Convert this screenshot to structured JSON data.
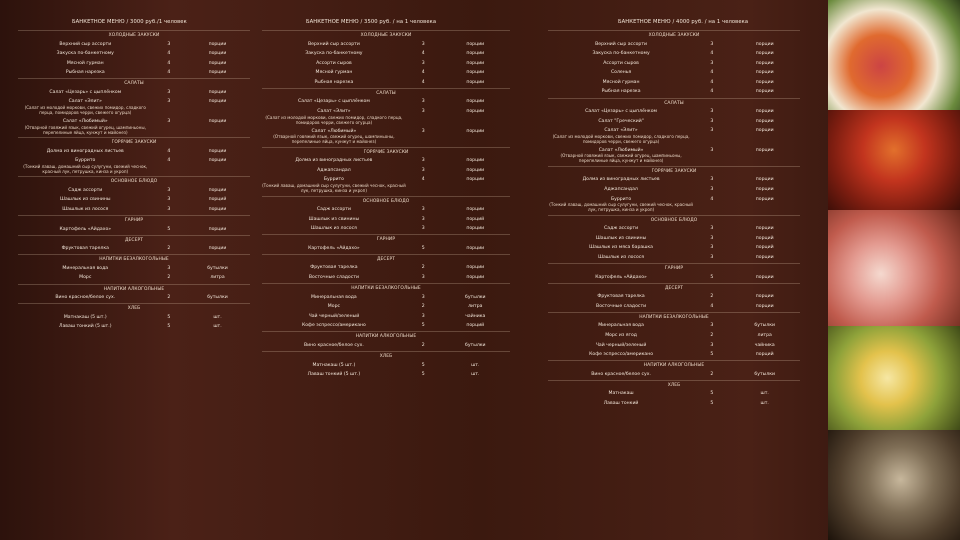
{
  "columns": [
    {
      "title": "БАНКЕТНОЕ МЕНЮ / 3000 руб./1 человек",
      "sections": [
        {
          "title": "ХОЛОДНЫЕ ЗАКУСКИ",
          "items": [
            {
              "name": "Верхний сыр ассорти",
              "qty": "3",
              "unit": "порции"
            },
            {
              "name": "Закуска по-банкетному",
              "qty": "4",
              "unit": "порции"
            },
            {
              "name": "Мясной гурман",
              "qty": "4",
              "unit": "порции"
            },
            {
              "name": "Рыбная нарезка",
              "qty": "4",
              "unit": "порции"
            }
          ]
        },
        {
          "title": "САЛАТЫ",
          "items": [
            {
              "name": "Салат «Цезарь» с цыплёнком",
              "qty": "3",
              "unit": "порции"
            },
            {
              "name": "Салат «Элит»",
              "desc": "(Салат из молодой моркови, свежих помидор, сладкого перца, помидоров черри, свежего огурца)",
              "qty": "3",
              "unit": "порции"
            },
            {
              "name": "Салат «Любимый»",
              "desc": "(Отварной говяжий язык, свежий огурец, шампиньоны, перепелиные яйца, кунжут и майонез)",
              "qty": "3",
              "unit": "порции"
            }
          ]
        },
        {
          "title": "ГОРЯЧИЕ ЗАКУСКИ",
          "items": [
            {
              "name": "Долма из виноградных листьев",
              "qty": "4",
              "unit": "порции"
            },
            {
              "name": "Буррито",
              "desc": "(Тонкий лаваш, домашний сыр сулугуни, свежий чеснок, красный лук, петрушка, кинза и укроп)",
              "qty": "4",
              "unit": "порции"
            }
          ]
        },
        {
          "title": "ОСНОВНОЕ БЛЮДО",
          "items": [
            {
              "name": "Садж ассорти",
              "qty": "3",
              "unit": "порции"
            },
            {
              "name": "Шашлык из свинины",
              "qty": "3",
              "unit": "порций"
            },
            {
              "name": "Шашлык из лосося",
              "qty": "3",
              "unit": "порции"
            }
          ]
        },
        {
          "title": "ГАРНИР",
          "items": [
            {
              "name": "Картофель «Айдахо»",
              "qty": "5",
              "unit": "порции"
            }
          ]
        },
        {
          "title": "ДЕСЕРТ",
          "items": [
            {
              "name": "Фруктовая тарелка",
              "qty": "2",
              "unit": "порции"
            }
          ]
        },
        {
          "title": "НАПИТКИ БЕЗАЛКОГОЛЬНЫЕ",
          "items": [
            {
              "name": "Минеральная вода",
              "qty": "3",
              "unit": "бутылки"
            },
            {
              "name": "Морс",
              "qty": "2",
              "unit": "литра"
            }
          ]
        },
        {
          "title": "НАПИТКИ АЛКОГОЛЬНЫЕ",
          "items": [
            {
              "name": "Вино красное/белое сух.",
              "qty": "2",
              "unit": "бутылки"
            }
          ]
        },
        {
          "title": "ХЛЕБ",
          "items": [
            {
              "name": "Матнакаш (5 шт.)",
              "qty": "5",
              "unit": "шт."
            },
            {
              "name": "Лаваш тонкий (5 шт.)",
              "qty": "5",
              "unit": "шт."
            }
          ]
        }
      ]
    },
    {
      "title": "БАНКЕТНОЕ МЕНЮ / 3500 руб. / на 1 человека",
      "sections": [
        {
          "title": "ХОЛОДНЫЕ ЗАКУСКИ",
          "items": [
            {
              "name": "Верхний сыр ассорти",
              "qty": "3",
              "unit": "порции"
            },
            {
              "name": "Закуска по-банкетному",
              "qty": "4",
              "unit": "порции"
            },
            {
              "name": "Ассорти сыров",
              "qty": "3",
              "unit": "порции"
            },
            {
              "name": "Мясной гурман",
              "qty": "4",
              "unit": "порции"
            },
            {
              "name": "Рыбная нарезка",
              "qty": "4",
              "unit": "порции"
            }
          ]
        },
        {
          "title": "САЛАТЫ",
          "items": [
            {
              "name": "Салат «Цезарь» с цыплёнком",
              "qty": "3",
              "unit": "порции"
            },
            {
              "name": "Салат «Элит»",
              "desc": "(Салат из молодой моркови, свежих помидор, сладкого перца, помидоров черри, свежего огурца)",
              "qty": "3",
              "unit": "порции"
            },
            {
              "name": "Салат «Любимый»",
              "desc": "(Отварной говяжий язык, свежий огурец, шампиньоны, перепелиные яйца, кунжут и майонез)",
              "qty": "3",
              "unit": "порции"
            }
          ]
        },
        {
          "title": "ГОРЯЧИЕ ЗАКУСКИ",
          "items": [
            {
              "name": "Долма из виноградных листьев",
              "qty": "3",
              "unit": "порции"
            },
            {
              "name": "Аджапсандал",
              "qty": "3",
              "unit": "порции"
            },
            {
              "name": "Буррито",
              "desc": "(Тонкий лаваш, домашний сыр сулугуни, свежий чеснок, красный лук, петрушка, кинза и укроп)",
              "qty": "4",
              "unit": "порции"
            }
          ]
        },
        {
          "title": "ОСНОВНОЕ БЛЮДО",
          "items": [
            {
              "name": "Садж ассорти",
              "qty": "3",
              "unit": "порции"
            },
            {
              "name": "Шашлык из свинины",
              "qty": "3",
              "unit": "порций"
            },
            {
              "name": "Шашлык из лосося",
              "qty": "3",
              "unit": "порции"
            }
          ]
        },
        {
          "title": "ГАРНИР",
          "items": [
            {
              "name": "Картофель «Айдахо»",
              "qty": "5",
              "unit": "порции"
            }
          ]
        },
        {
          "title": "ДЕСЕРТ",
          "items": [
            {
              "name": "Фруктовая тарелка",
              "qty": "2",
              "unit": "порции"
            },
            {
              "name": "Восточные сладости",
              "qty": "3",
              "unit": "порции"
            }
          ]
        },
        {
          "title": "НАПИТКИ БЕЗАЛКОГОЛЬНЫЕ",
          "items": [
            {
              "name": "Минеральная вода",
              "qty": "3",
              "unit": "бутылки"
            },
            {
              "name": "Морс",
              "qty": "2",
              "unit": "литра"
            },
            {
              "name": "Чай черный/зеленый",
              "qty": "3",
              "unit": "чайника"
            },
            {
              "name": "Кофе эспрессо/американо",
              "qty": "5",
              "unit": "порций"
            }
          ]
        },
        {
          "title": "НАПИТКИ АЛКОГОЛЬНЫЕ",
          "items": [
            {
              "name": "Вино красное/белое сух.",
              "qty": "2",
              "unit": "бутылки"
            }
          ]
        },
        {
          "title": "ХЛЕБ",
          "items": [
            {
              "name": "Матнакаш (5 шт.)",
              "qty": "5",
              "unit": "шт."
            },
            {
              "name": "Лаваш тонкий (5 шт.)",
              "qty": "5",
              "unit": "шт."
            }
          ]
        }
      ]
    },
    {
      "title": "БАНКЕТНОЕ МЕНЮ / 4000 руб. / на 1 человека",
      "sections": [
        {
          "title": "ХОЛОДНЫЕ ЗАКУСКИ",
          "items": [
            {
              "name": "Верхний сыр ассорти",
              "qty": "3",
              "unit": "порции"
            },
            {
              "name": "Закуска по-банкетному",
              "qty": "4",
              "unit": "порции"
            },
            {
              "name": "Ассорти сыров",
              "qty": "3",
              "unit": "порции"
            },
            {
              "name": "Соленья",
              "qty": "4",
              "unit": "порции"
            },
            {
              "name": "Мясной гурман",
              "qty": "4",
              "unit": "порции"
            },
            {
              "name": "Рыбная нарезка",
              "qty": "4",
              "unit": "порции"
            }
          ]
        },
        {
          "title": "САЛАТЫ",
          "items": [
            {
              "name": "Салат «Цезарь» с цыплёнком",
              "qty": "3",
              "unit": "порции"
            },
            {
              "name": "Салат \"Греческий\"",
              "qty": "3",
              "unit": "порции"
            },
            {
              "name": "Салат «Элит»",
              "desc": "(Салат из молодой моркови, свежих помидор, сладкого перца, помидоров черри, свежего огурца)",
              "qty": "3",
              "unit": "порции"
            },
            {
              "name": "Салат «Любимый»",
              "desc": "(Отварной говяжий язык, свежий огурец, шампиньоны, перепелиные яйца, кунжут и майонез)",
              "qty": "3",
              "unit": "порции"
            }
          ]
        },
        {
          "title": "ГОРЯЧИЕ ЗАКУСКИ",
          "items": [
            {
              "name": "Долма из виноградных листьев",
              "qty": "3",
              "unit": "порции"
            },
            {
              "name": "Аджапсандал",
              "qty": "3",
              "unit": "порции"
            },
            {
              "name": "Буррито",
              "desc": "(Тонкий лаваш, домашний сыр сулугуни, свежий чеснок, красный лук, петрушка, кинза и укроп)",
              "qty": "4",
              "unit": "порции"
            }
          ]
        },
        {
          "title": "ОСНОВНОЕ БЛЮДО",
          "items": [
            {
              "name": "Садж ассорти",
              "qty": "3",
              "unit": "порции"
            },
            {
              "name": "Шашлык из свинины",
              "qty": "3",
              "unit": "порций"
            },
            {
              "name": "Шашлык из мяса барашка",
              "qty": "3",
              "unit": "порций"
            },
            {
              "name": "Шашлык из лосося",
              "qty": "3",
              "unit": "порции"
            }
          ]
        },
        {
          "title": "ГАРНИР",
          "items": [
            {
              "name": "Картофель «Айдахо»",
              "qty": "5",
              "unit": "порции"
            }
          ]
        },
        {
          "title": "ДЕСЕРТ",
          "items": [
            {
              "name": "Фруктовая тарелка",
              "qty": "2",
              "unit": "порции"
            },
            {
              "name": "Восточные сладости",
              "qty": "4",
              "unit": "порции"
            }
          ]
        },
        {
          "title": "НАПИТКИ БЕЗАЛКОГОЛЬНЫЕ",
          "items": [
            {
              "name": "Минеральная вода",
              "qty": "3",
              "unit": "бутылки"
            },
            {
              "name": "Морс из ягод",
              "qty": "2",
              "unit": "литра"
            },
            {
              "name": "Чай черный/зеленый",
              "qty": "3",
              "unit": "чайника"
            },
            {
              "name": "Кофе эспрессо/американо",
              "qty": "5",
              "unit": "порций"
            }
          ]
        },
        {
          "title": "НАПИТКИ АЛКОГОЛЬНЫЕ",
          "items": [
            {
              "name": "Вино красное/белое сух.",
              "qty": "2",
              "unit": "бутылки"
            }
          ]
        },
        {
          "title": "ХЛЕБ",
          "items": [
            {
              "name": "Матнакаш",
              "qty": "5",
              "unit": "шт."
            },
            {
              "name": "Лаваш тонкий",
              "qty": "5",
              "unit": "шт."
            }
          ]
        }
      ]
    }
  ]
}
